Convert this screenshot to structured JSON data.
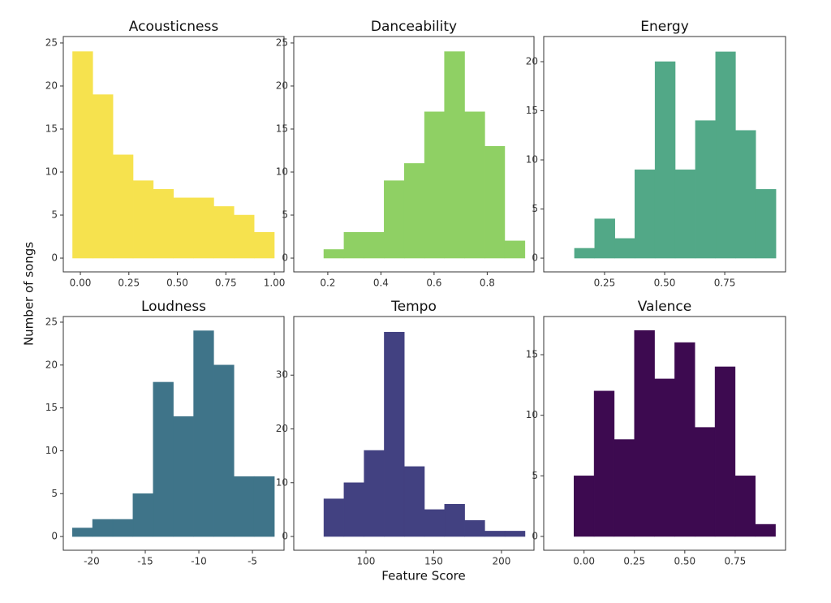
{
  "xlabel": "Feature Score",
  "ylabel": "Number of songs",
  "chart_data": [
    {
      "type": "histogram",
      "title": "Acousticness",
      "color": "#f6e24e",
      "bins": [
        -0.04,
        0.064,
        0.168,
        0.272,
        0.376,
        0.48,
        0.584,
        0.688,
        0.792,
        0.896,
        1.0
      ],
      "values": [
        24,
        19,
        12,
        9,
        8,
        7,
        7,
        6,
        5,
        3
      ],
      "xlim": [
        -0.088,
        1.05
      ],
      "ylim": [
        -1.6,
        25.75
      ],
      "xticks": [
        {
          "value": 0,
          "label": "0.00"
        },
        {
          "value": 0.25,
          "label": "0.25"
        },
        {
          "value": 0.5,
          "label": "0.50"
        },
        {
          "value": 0.75,
          "label": "0.75"
        },
        {
          "value": 1,
          "label": "1.00"
        }
      ],
      "yticks": [
        0,
        5,
        10,
        15,
        20,
        25
      ]
    },
    {
      "type": "histogram",
      "title": "Danceability",
      "color": "#8fd064",
      "bins": [
        0.185,
        0.261,
        0.336,
        0.412,
        0.488,
        0.564,
        0.639,
        0.715,
        0.791,
        0.866,
        0.942
      ],
      "values": [
        1,
        3,
        3,
        9,
        11,
        17,
        24,
        17,
        13,
        2
      ],
      "xlim": [
        0.072,
        0.976
      ],
      "ylim": [
        -1.6,
        25.75
      ],
      "xticks": [
        0.2,
        0.4,
        0.6,
        0.8
      ],
      "yticks": [
        0,
        5,
        10,
        15,
        20,
        25
      ]
    },
    {
      "type": "histogram",
      "title": "Energy",
      "color": "#52a887",
      "bins": [
        0.125,
        0.209,
        0.293,
        0.376,
        0.46,
        0.544,
        0.628,
        0.712,
        0.795,
        0.879,
        0.963
      ],
      "values": [
        1,
        4,
        2,
        9,
        20,
        9,
        14,
        21,
        13,
        7
      ],
      "xlim": [
        -0.003,
        1.003
      ],
      "ylim": [
        -1.4,
        22.56
      ],
      "xticks": [
        {
          "value": 0.25,
          "label": "0.25"
        },
        {
          "value": 0.5,
          "label": "0.50"
        },
        {
          "value": 0.75,
          "label": "0.75"
        }
      ],
      "yticks": [
        0,
        5,
        10,
        15,
        20
      ]
    },
    {
      "type": "histogram",
      "title": "Loudness",
      "color": "#3f7489",
      "bins": [
        -21.8,
        -19.92,
        -18.03,
        -16.15,
        -14.26,
        -12.38,
        -10.49,
        -8.61,
        -6.72,
        -4.84,
        -2.95
      ],
      "values": [
        1,
        2,
        2,
        5,
        18,
        14,
        24,
        20,
        7,
        7
      ],
      "xlim": [
        -22.65,
        -2.05
      ],
      "ylim": [
        -1.6,
        25.66
      ],
      "xticks": [
        -20,
        -15,
        -10,
        -5
      ],
      "yticks": [
        0,
        5,
        10,
        15,
        20,
        25
      ]
    },
    {
      "type": "histogram",
      "title": "Tempo",
      "color": "#424181",
      "bins": [
        68.9,
        83.75,
        98.6,
        113.45,
        128.3,
        143.15,
        158,
        172.85,
        187.7,
        202.55,
        217.4
      ],
      "values": [
        7,
        10,
        16,
        38,
        13,
        5,
        6,
        3,
        1,
        1
      ],
      "xlim": [
        46.7,
        224
      ],
      "ylim": [
        -2.56,
        40.9
      ],
      "xticks": [
        100,
        150,
        200
      ],
      "yticks": [
        0,
        10,
        20,
        30
      ]
    },
    {
      "type": "histogram",
      "title": "Valence",
      "color": "#3d0a50",
      "bins": [
        -0.05,
        0.05,
        0.15,
        0.25,
        0.35,
        0.45,
        0.55,
        0.65,
        0.75,
        0.85,
        0.95
      ],
      "values": [
        5,
        12,
        8,
        17,
        13,
        16,
        9,
        14,
        5,
        1
      ],
      "xlim": [
        -0.2,
        1.0
      ],
      "ylim": [
        -1.14,
        18.15
      ],
      "xticks": [
        {
          "value": 0,
          "label": "0.00"
        },
        {
          "value": 0.25,
          "label": "0.25"
        },
        {
          "value": 0.5,
          "label": "0.50"
        },
        {
          "value": 0.75,
          "label": "0.75"
        }
      ],
      "yticks": [
        0,
        5,
        10,
        15
      ]
    }
  ]
}
